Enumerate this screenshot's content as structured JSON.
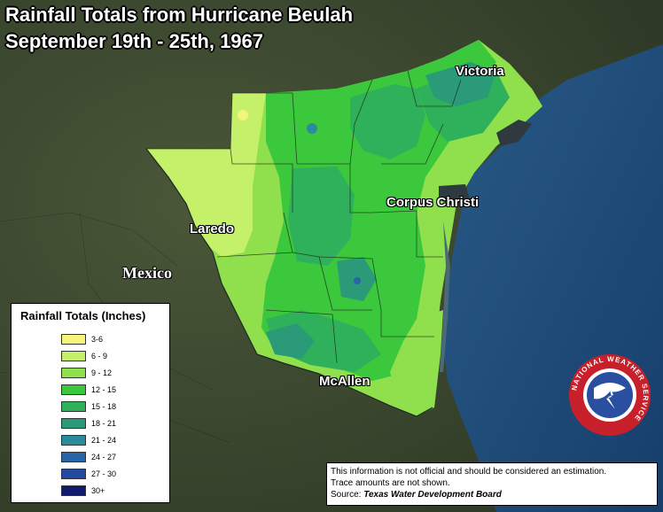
{
  "title": {
    "line1": "Rainfall Totals from Hurricane Beulah",
    "line2": "September 19th - 25th, 1967"
  },
  "map": {
    "labels": {
      "victoria": "Victoria",
      "corpus_christi": "Corpus Christi",
      "laredo": "Laredo",
      "mexico": "Mexico",
      "mcallen": "McAllen"
    },
    "colors": {
      "land": "#3d4a30",
      "water": "#1f4a7a",
      "c3_6": "#f5f57a",
      "c6_9": "#c4f06a",
      "c9_12": "#8fe04c",
      "c12_15": "#3cc83c",
      "c15_18": "#2fb05a",
      "c18_21": "#2a9a78",
      "c21_24": "#2a8c9a",
      "c24_27": "#2a64a8",
      "c27_30": "#244aa0",
      "c30": "#121a70"
    }
  },
  "legend": {
    "title": "Rainfall Totals (Inches)",
    "items": [
      {
        "label": "3-6",
        "color": "#f5f57a"
      },
      {
        "label": "6 - 9",
        "color": "#c4f06a"
      },
      {
        "label": "9 - 12",
        "color": "#8fe04c"
      },
      {
        "label": "12 - 15",
        "color": "#3cc83c"
      },
      {
        "label": "15 - 18",
        "color": "#2fb05a"
      },
      {
        "label": "18 - 21",
        "color": "#2a9a78"
      },
      {
        "label": "21 - 24",
        "color": "#2a8c9a"
      },
      {
        "label": "24 - 27",
        "color": "#2a64a8"
      },
      {
        "label": "27 - 30",
        "color": "#244aa0"
      },
      {
        "label": "30+",
        "color": "#121a70"
      }
    ]
  },
  "note": {
    "line1": "This information is not official and should be considered an estimation.",
    "line2": "Trace amounts are not shown.",
    "source_label": "Source:",
    "source_value": "Texas Water Development Board"
  },
  "logo": {
    "text": "NATIONAL WEATHER SERVICE",
    "icon": "nws-logo-icon"
  }
}
